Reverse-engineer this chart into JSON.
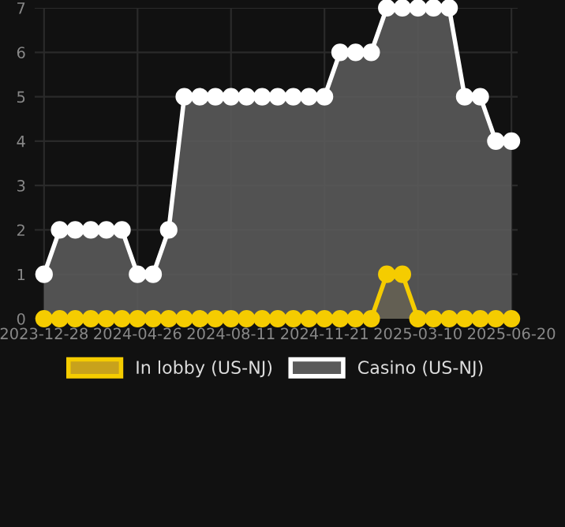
{
  "chart_data": {
    "type": "area",
    "categories": [
      "2023-12-28",
      null,
      null,
      null,
      null,
      null,
      "2024-04-26",
      null,
      null,
      null,
      null,
      null,
      "2024-08-11",
      null,
      null,
      null,
      null,
      null,
      "2024-11-21",
      null,
      null,
      null,
      null,
      null,
      "2025-03-10",
      null,
      null,
      null,
      null,
      null,
      "2025-06-20"
    ],
    "series": [
      {
        "name": "In lobby (US-NJ)",
        "color": "#f5cc00",
        "values": [
          0,
          0,
          0,
          0,
          0,
          0,
          0,
          0,
          0,
          0,
          0,
          0,
          0,
          0,
          0,
          0,
          0,
          0,
          0,
          0,
          0,
          0,
          1,
          1,
          0,
          0,
          0,
          0,
          0,
          0,
          0
        ]
      },
      {
        "name": "Casino (US-NJ)",
        "color": "#ffffff",
        "values": [
          1,
          2,
          2,
          2,
          2,
          2,
          1,
          1,
          2,
          5,
          5,
          5,
          5,
          5,
          5,
          5,
          5,
          5,
          5,
          6,
          6,
          6,
          7,
          7,
          7,
          7,
          7,
          5,
          5,
          4,
          4
        ]
      }
    ],
    "ylim": [
      0,
      7
    ],
    "yticks": [
      0,
      1,
      2,
      3,
      4,
      5,
      6,
      7
    ],
    "grid": true,
    "legend": "bottom",
    "marker": "circle"
  }
}
